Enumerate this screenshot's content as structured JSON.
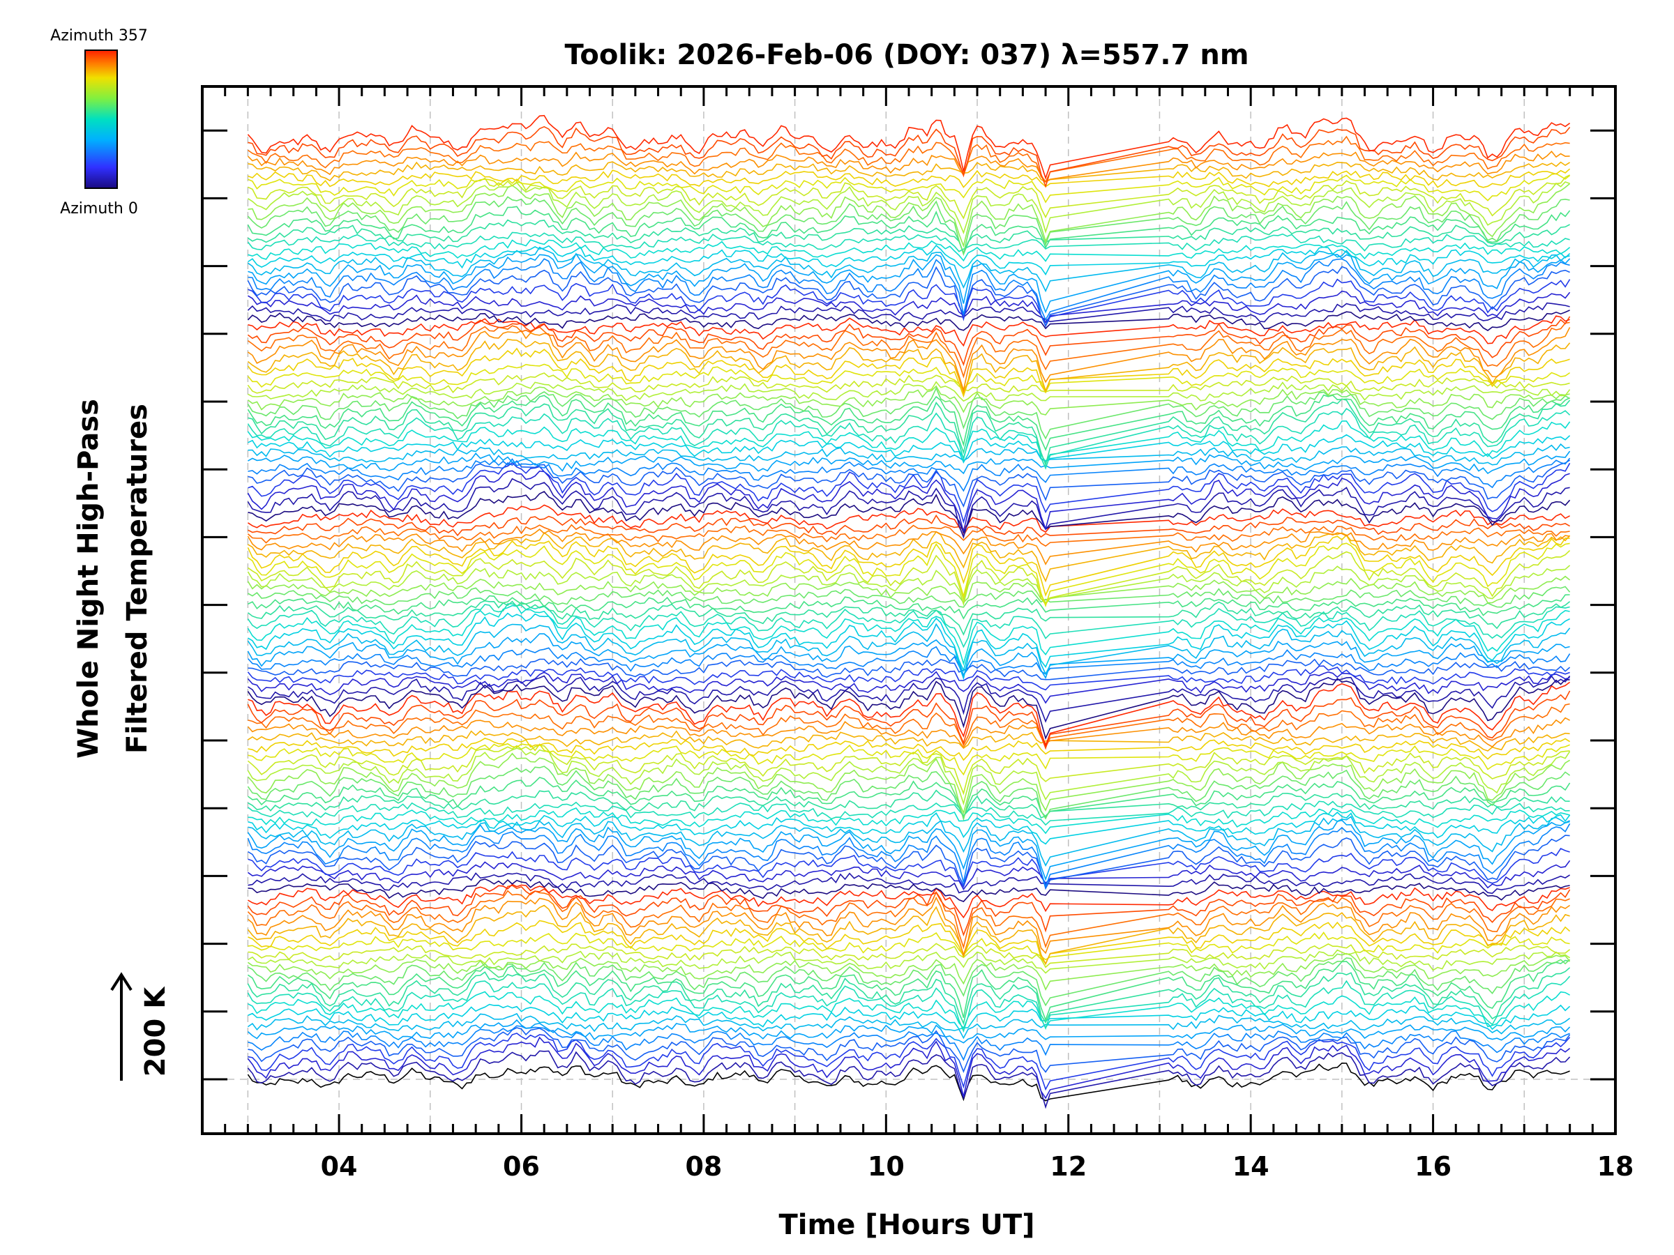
{
  "chart_data": {
    "type": "line",
    "title": "Toolik: 2026-Feb-06 (DOY: 037) λ=557.7 nm",
    "xlabel": "Time [Hours UT]",
    "ylabel_line1": "Whole Night High-Pass",
    "ylabel_line2": "Filtered Temperatures",
    "xlim": [
      2.5,
      18
    ],
    "x_ticks": [
      "04",
      "06",
      "08",
      "10",
      "12",
      "14",
      "16",
      "18"
    ],
    "x_tick_values": [
      4,
      6,
      8,
      10,
      12,
      14,
      16,
      18
    ],
    "x_range_data": [
      3.0,
      17.5
    ],
    "scale_bar_label": "200 K",
    "colorbar": {
      "top_label": "Azimuth 357",
      "bottom_label": "Azimuth 0",
      "colormap": "rainbow"
    },
    "series_description": "Stacked high-pass filtered temperature traces, one per azimuth (0 to 357), offset vertically; color encodes azimuth",
    "num_traces": 120,
    "data_gap": [
      11.8,
      13.1
    ],
    "disturbance_times": [
      5.7,
      6.0,
      6.6,
      10.6,
      10.9,
      11.7,
      13.2,
      14.8,
      16.6,
      17.4
    ],
    "grid": "vertical dashed at each hour",
    "colors": {
      "frame": "#000000",
      "grid": "#c0c0c0",
      "colormap_stops": [
        "#000000",
        "#1a0a80",
        "#2020ff",
        "#00a0ff",
        "#00e0e0",
        "#40e080",
        "#b0f040",
        "#f0e000",
        "#ff8000",
        "#ff2000"
      ]
    }
  }
}
